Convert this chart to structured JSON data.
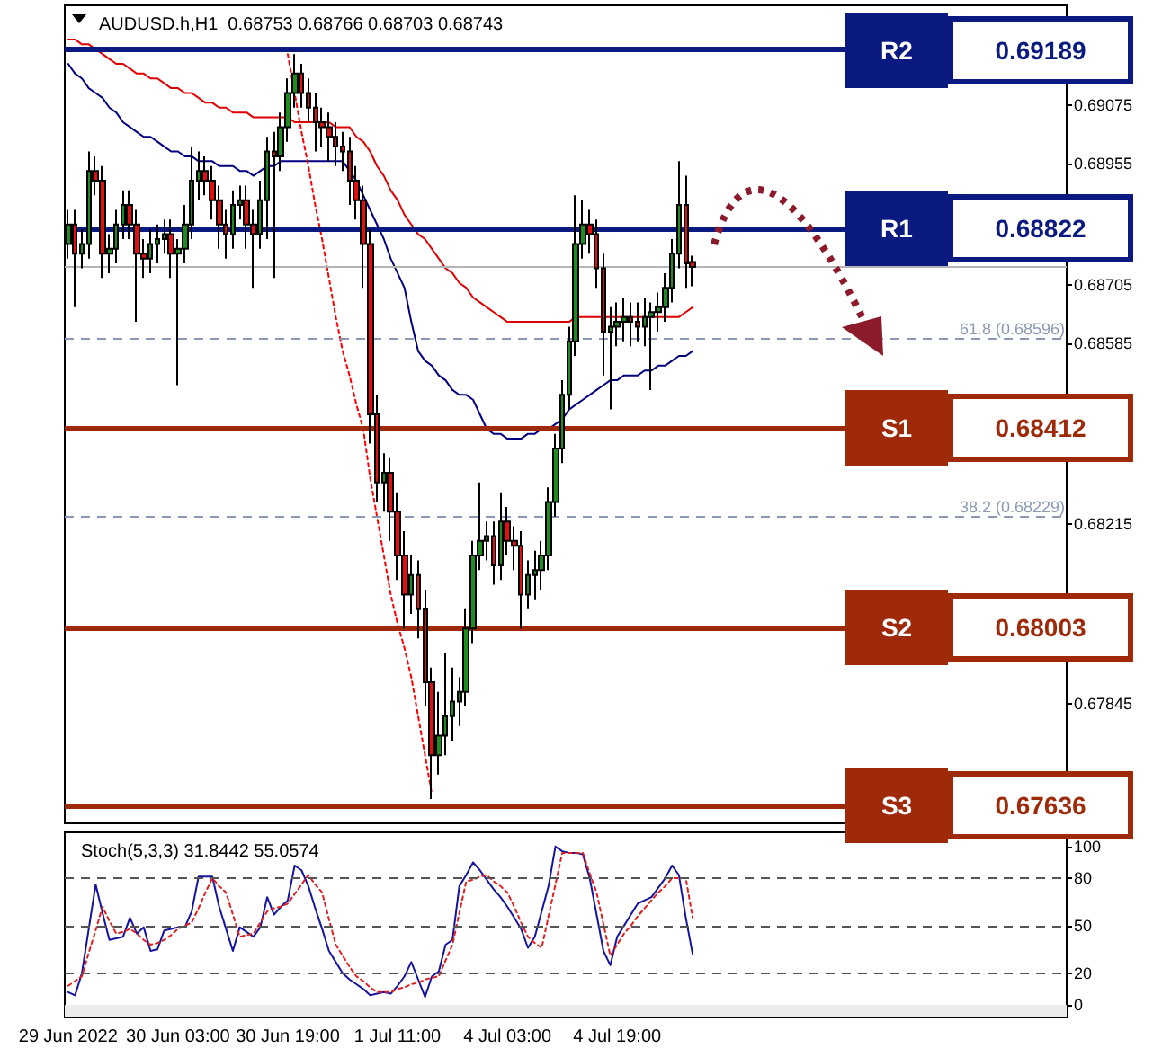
{
  "chart_data": [
    {
      "type": "candlestick",
      "title": "AUDUSD.h,H1  0.68753 0.68766 0.68703 0.68743",
      "categories": [
        null,
        null,
        null,
        null,
        null,
        null,
        null,
        null,
        null,
        null,
        null,
        null,
        null,
        null,
        null,
        null,
        null,
        null,
        null,
        null,
        null,
        null,
        null,
        null,
        null,
        null,
        null,
        null,
        null,
        null,
        null,
        null,
        null,
        null,
        null,
        null,
        null,
        null,
        null,
        null,
        null,
        null,
        null,
        null,
        null,
        null,
        null,
        null,
        null,
        null,
        null,
        null,
        null,
        null,
        null,
        null,
        null,
        null,
        null,
        null,
        null,
        null,
        null,
        null,
        null,
        null,
        null,
        null,
        null,
        null,
        null,
        null,
        null,
        null,
        null,
        null,
        null,
        null,
        null,
        null,
        null,
        null,
        null,
        null,
        null,
        null,
        null,
        null,
        null,
        null,
        null,
        null,
        null,
        null,
        null,
        null,
        null,
        null,
        null,
        null,
        null,
        null,
        null,
        null,
        null,
        null,
        null,
        null,
        null,
        null,
        null,
        null,
        null,
        null,
        null,
        null,
        null,
        null,
        null,
        null,
        null,
        null,
        null,
        null,
        null,
        null,
        null,
        null,
        null,
        null,
        null,
        null,
        null,
        null,
        null,
        null,
        null,
        null,
        null,
        null,
        null,
        null,
        null,
        null,
        null,
        null
      ],
      "ohlc": [
        [
          0.6879,
          0.6886,
          0.6876,
          0.6883
        ],
        [
          0.6883,
          0.6886,
          0.6866,
          0.6877
        ],
        [
          0.6877,
          0.6882,
          0.6874,
          0.6879
        ],
        [
          0.6879,
          0.6898,
          0.6876,
          0.6894
        ],
        [
          0.6894,
          0.6897,
          0.6889,
          0.6892
        ],
        [
          0.6892,
          0.6895,
          0.6872,
          0.6877
        ],
        [
          0.6877,
          0.6881,
          0.6873,
          0.6878
        ],
        [
          0.6878,
          0.6886,
          0.6875,
          0.6883
        ],
        [
          0.6883,
          0.689,
          0.688,
          0.6887
        ],
        [
          0.6887,
          0.689,
          0.688,
          0.6883
        ],
        [
          0.6883,
          0.6886,
          0.6863,
          0.6877
        ],
        [
          0.6877,
          0.688,
          0.6872,
          0.6876
        ],
        [
          0.6876,
          0.6882,
          0.6873,
          0.6879
        ],
        [
          0.6879,
          0.6883,
          0.6875,
          0.688
        ],
        [
          0.688,
          0.6884,
          0.6877,
          0.6881
        ],
        [
          0.6881,
          0.6884,
          0.6872,
          0.6877
        ],
        [
          0.6877,
          0.688,
          0.685,
          0.6878
        ],
        [
          0.6878,
          0.6887,
          0.6875,
          0.6883
        ],
        [
          0.6883,
          0.6899,
          0.688,
          0.6892
        ],
        [
          0.6892,
          0.6898,
          0.6888,
          0.6894
        ],
        [
          0.6894,
          0.6897,
          0.6889,
          0.6892
        ],
        [
          0.6892,
          0.6895,
          0.6884,
          0.6888
        ],
        [
          0.6888,
          0.6891,
          0.6878,
          0.6883
        ],
        [
          0.6883,
          0.6886,
          0.6876,
          0.6881
        ],
        [
          0.6881,
          0.689,
          0.6878,
          0.6887
        ],
        [
          0.6887,
          0.6891,
          0.6884,
          0.6888
        ],
        [
          0.6888,
          0.6891,
          0.6878,
          0.6883
        ],
        [
          0.6883,
          0.6886,
          0.687,
          0.6881
        ],
        [
          0.6881,
          0.6892,
          0.6878,
          0.6888
        ],
        [
          0.6888,
          0.6901,
          0.688,
          0.6898
        ],
        [
          0.6898,
          0.6902,
          0.6872,
          0.6897
        ],
        [
          0.6897,
          0.6906,
          0.6894,
          0.6903
        ],
        [
          0.6903,
          0.6913,
          0.69,
          0.691
        ],
        [
          0.691,
          0.6918,
          0.6907,
          0.6914
        ],
        [
          0.6914,
          0.6916,
          0.6907,
          0.691
        ],
        [
          0.691,
          0.6913,
          0.6904,
          0.6907
        ],
        [
          0.6907,
          0.691,
          0.6898,
          0.6904
        ],
        [
          0.6904,
          0.6907,
          0.6899,
          0.6903
        ],
        [
          0.6903,
          0.6906,
          0.6896,
          0.6901
        ],
        [
          0.6901,
          0.6904,
          0.6895,
          0.6899
        ],
        [
          0.6899,
          0.6902,
          0.6894,
          0.6898
        ],
        [
          0.6898,
          0.6901,
          0.6887,
          0.6892
        ],
        [
          0.6892,
          0.6895,
          0.6884,
          0.6888
        ],
        [
          0.6888,
          0.6891,
          0.687,
          0.6879
        ],
        [
          0.6879,
          0.6882,
          0.6838,
          0.6844
        ],
        [
          0.6844,
          0.6848,
          0.6826,
          0.683
        ],
        [
          0.683,
          0.6836,
          0.6824,
          0.6832
        ],
        [
          0.6832,
          0.6835,
          0.6818,
          0.6824
        ],
        [
          0.6824,
          0.6828,
          0.681,
          0.6815
        ],
        [
          0.6815,
          0.682,
          0.68,
          0.6807
        ],
        [
          0.6807,
          0.6815,
          0.6803,
          0.6811
        ],
        [
          0.6811,
          0.6814,
          0.6798,
          0.6804
        ],
        [
          0.6804,
          0.6808,
          0.6784,
          0.6789
        ],
        [
          0.6789,
          0.6792,
          0.6765,
          0.6774
        ],
        [
          0.6774,
          0.6787,
          0.677,
          0.6778
        ],
        [
          0.6778,
          0.6795,
          0.6774,
          0.6782
        ],
        [
          0.6782,
          0.6792,
          0.6777,
          0.6785
        ],
        [
          0.6785,
          0.679,
          0.678,
          0.6787
        ],
        [
          0.6787,
          0.6804,
          0.6784,
          0.68
        ],
        [
          0.68,
          0.6818,
          0.6797,
          0.6815
        ],
        [
          0.6815,
          0.683,
          0.6812,
          0.6818
        ],
        [
          0.6818,
          0.6822,
          0.6814,
          0.6819
        ],
        [
          0.6819,
          0.6822,
          0.6809,
          0.6813
        ],
        [
          0.6813,
          0.6828,
          0.681,
          0.6822
        ],
        [
          0.6822,
          0.6825,
          0.6815,
          0.6818
        ],
        [
          0.6818,
          0.6821,
          0.6812,
          0.6817
        ],
        [
          0.6817,
          0.682,
          0.68,
          0.6807
        ],
        [
          0.6807,
          0.6814,
          0.6804,
          0.6811
        ],
        [
          0.6811,
          0.6816,
          0.6806,
          0.6812
        ],
        [
          0.6812,
          0.6818,
          0.6808,
          0.6815
        ],
        [
          0.6815,
          0.6829,
          0.6812,
          0.6826
        ],
        [
          0.6826,
          0.684,
          0.6823,
          0.6837
        ],
        [
          0.6837,
          0.6851,
          0.6834,
          0.6848
        ],
        [
          0.6848,
          0.6862,
          0.6845,
          0.6859
        ],
        [
          0.6859,
          0.6889,
          0.6856,
          0.6879
        ],
        [
          0.6879,
          0.6888,
          0.6876,
          0.6883
        ],
        [
          0.6883,
          0.6886,
          0.6877,
          0.6881
        ],
        [
          0.6881,
          0.6884,
          0.687,
          0.6874
        ],
        [
          0.6874,
          0.6877,
          0.6852,
          0.6861
        ],
        [
          0.6861,
          0.6866,
          0.6845,
          0.6862
        ],
        [
          0.6862,
          0.6867,
          0.6858,
          0.6863
        ],
        [
          0.6863,
          0.6868,
          0.6859,
          0.6864
        ],
        [
          0.6864,
          0.6867,
          0.6858,
          0.6863
        ],
        [
          0.6863,
          0.6867,
          0.6859,
          0.6862
        ],
        [
          0.6862,
          0.6868,
          0.6858,
          0.6864
        ],
        [
          0.6864,
          0.6867,
          0.6849,
          0.6865
        ],
        [
          0.6865,
          0.6869,
          0.6861,
          0.6866
        ],
        [
          0.6866,
          0.6873,
          0.6863,
          0.687
        ],
        [
          0.687,
          0.688,
          0.6867,
          0.6877
        ],
        [
          0.6877,
          0.6896,
          0.6874,
          0.6887
        ],
        [
          0.6887,
          0.6893,
          0.687,
          0.6875
        ],
        [
          0.68753,
          0.68766,
          0.68703,
          0.68743
        ],
        null,
        null,
        null,
        null,
        null,
        null,
        null,
        null,
        null,
        null,
        null,
        null,
        null,
        null,
        null,
        null,
        null,
        null,
        null,
        null,
        null,
        null,
        null,
        null,
        null,
        null,
        null,
        null,
        null,
        null,
        null,
        null,
        null,
        null,
        null,
        null,
        null,
        null,
        null,
        null,
        null,
        null,
        null,
        null,
        null,
        null,
        null,
        null,
        null,
        null,
        null,
        null,
        null,
        null
      ],
      "series": [
        {
          "type": "line",
          "color": "#e00000",
          "values": [
            0.6921,
            0.6921,
            0.692,
            0.692,
            0.6919,
            0.6918,
            0.6917,
            0.6916,
            0.6916,
            0.6915,
            0.6914,
            0.6914,
            0.6913,
            0.6913,
            0.6912,
            0.6911,
            0.6911,
            0.691,
            0.691,
            0.6909,
            0.6908,
            0.6908,
            0.6907,
            0.6907,
            0.6906,
            0.6906,
            0.6906,
            0.6905,
            0.6905,
            0.6905,
            0.6905,
            0.6905,
            0.6905,
            0.6904,
            0.6904,
            0.6904,
            0.6904,
            0.6904,
            0.6904,
            0.6903,
            0.6903,
            0.6903,
            0.6901,
            0.69,
            0.6898,
            0.6895,
            0.6893,
            0.689,
            0.6888,
            0.6885,
            0.6883,
            0.6881,
            0.688,
            0.6878,
            0.6876,
            0.6874,
            0.6873,
            0.6871,
            0.687,
            0.6868,
            0.6867,
            0.6866,
            0.6865,
            0.6864,
            0.6863,
            0.6863,
            0.6863,
            0.6863,
            0.6863,
            0.6863,
            0.6863,
            0.6863,
            0.6863,
            0.6863,
            0.6864,
            0.6864,
            0.6864,
            0.6864,
            0.6864,
            0.6864,
            0.6864,
            0.6864,
            0.6864,
            0.6864,
            0.6864,
            0.6864,
            0.6864,
            0.6864,
            0.6864,
            0.6864,
            0.6865,
            0.6866,
            null,
            null,
            null,
            null,
            null,
            null,
            null,
            null,
            null,
            null,
            null,
            null,
            null,
            null,
            null,
            null,
            null,
            null,
            null,
            null,
            null,
            null,
            null,
            null,
            null,
            null,
            null,
            null,
            null,
            null,
            null,
            null,
            null,
            null,
            null,
            null,
            null,
            null,
            null,
            null,
            null,
            null,
            null,
            null,
            null,
            null,
            null,
            null,
            null,
            null,
            null,
            null,
            null,
            null
          ]
        },
        {
          "type": "line",
          "color": "#000080",
          "values": [
            0.6916,
            0.6914,
            0.6913,
            0.6911,
            0.691,
            0.6909,
            0.6907,
            0.6906,
            0.6904,
            0.6903,
            0.6902,
            0.6901,
            0.6901,
            0.69,
            0.6899,
            0.6898,
            0.6898,
            0.6897,
            0.6897,
            0.6896,
            0.6896,
            0.6896,
            0.6895,
            0.6895,
            0.6895,
            0.6894,
            0.6894,
            0.6893,
            0.6894,
            0.6895,
            0.6895,
            0.6896,
            0.6896,
            0.6896,
            0.6896,
            0.6896,
            0.6896,
            0.6896,
            0.6896,
            0.6896,
            0.6896,
            0.6894,
            0.6892,
            0.6889,
            0.6886,
            0.6883,
            0.688,
            0.6876,
            0.6873,
            0.687,
            0.6863,
            0.6857,
            0.6855,
            0.6854,
            0.6852,
            0.6851,
            0.6849,
            0.6848,
            0.6848,
            0.6847,
            0.6844,
            0.6841,
            0.684,
            0.684,
            0.6839,
            0.6839,
            0.6839,
            0.684,
            0.684,
            0.6841,
            0.6841,
            0.6842,
            0.6843,
            0.6845,
            0.6846,
            0.6847,
            0.6848,
            0.6849,
            0.685,
            0.6851,
            0.6851,
            0.6852,
            0.6852,
            0.6852,
            0.6853,
            0.6853,
            0.6854,
            0.6854,
            0.6855,
            0.6856,
            0.6856,
            0.6857,
            null,
            null,
            null,
            null,
            null,
            null,
            null,
            null,
            null,
            null,
            null,
            null,
            null,
            null,
            null,
            null,
            null,
            null,
            null,
            null,
            null,
            null,
            null,
            null,
            null,
            null,
            null,
            null,
            null,
            null,
            null,
            null,
            null,
            null,
            null,
            null,
            null,
            null,
            null,
            null,
            null,
            null,
            null,
            null,
            null,
            null,
            null,
            null,
            null,
            null,
            null,
            null,
            null,
            null
          ]
        },
        {
          "type": "line",
          "color": "#ff0000",
          "line_style": "dotted",
          "values": [
            null,
            null,
            null,
            null,
            null,
            null,
            null,
            null,
            null,
            null,
            null,
            null,
            null,
            null,
            null,
            null,
            null,
            null,
            null,
            null,
            null,
            null,
            null,
            null,
            null,
            null,
            null,
            null,
            null,
            null,
            null,
            null,
            0.6918,
            0.691,
            0.6902,
            0.6895,
            0.6887,
            0.688,
            0.6872,
            0.6864,
            0.6857,
            0.6852,
            0.6846,
            0.6841,
            0.6831,
            0.6823,
            0.6815,
            0.6807,
            0.6801,
            0.6796,
            0.679,
            0.6782,
            0.6774,
            0.6766,
            null,
            null,
            null,
            null,
            null,
            null,
            null,
            null,
            null,
            null,
            null,
            null,
            null,
            null,
            null,
            null,
            null,
            null,
            null,
            null,
            null,
            null,
            null,
            null,
            null,
            null,
            null,
            null,
            null,
            null,
            null,
            null,
            null,
            null,
            null,
            null,
            null,
            null,
            null,
            null,
            null,
            null,
            null,
            null,
            null,
            null,
            null,
            null,
            null,
            null,
            null,
            null,
            null,
            null,
            null,
            null,
            null,
            null,
            null,
            null,
            null,
            null,
            null,
            null,
            null,
            null,
            null,
            null,
            null,
            null,
            null,
            null,
            null,
            null,
            null,
            null,
            null,
            null,
            null,
            null,
            null,
            null,
            null,
            null,
            null,
            null,
            null,
            null,
            null,
            null,
            null,
            null
          ]
        }
      ],
      "ylim": [
        0.676,
        0.6928
      ],
      "yticks": [
        0.69075,
        0.68955,
        0.68705,
        0.68585,
        0.68215,
        0.67845
      ],
      "tick_labels": "y",
      "grid": false,
      "marker": "none",
      "ref_lines": [
        {
          "axis": "y",
          "value": 0.68743,
          "color": "#b4b4b4"
        },
        {
          "axis": "y",
          "value": 0.68596,
          "label": "61.8 (0.68596)",
          "color": "#8a9ab4",
          "line_style": "dashed"
        },
        {
          "axis": "y",
          "value": 0.68229,
          "label": "38.2 (0.68229)",
          "color": "#8a9ab4",
          "line_style": "dashed"
        },
        {
          "axis": "y",
          "value": 0.69189,
          "label": "R2",
          "color": "#0b1a80",
          "line_style": "solid"
        },
        {
          "axis": "y",
          "value": 0.68822,
          "label": "R1",
          "color": "#0b1a80",
          "line_style": "solid"
        },
        {
          "axis": "y",
          "value": 0.68412,
          "label": "S1",
          "color": "#9e2a0a",
          "line_style": "solid"
        },
        {
          "axis": "y",
          "value": 0.68003,
          "label": "S2",
          "color": "#9e2a0a",
          "line_style": "solid"
        },
        {
          "axis": "y",
          "value": 0.67636,
          "label": "S3",
          "color": "#9e2a0a",
          "line_style": "solid"
        }
      ],
      "annotations": [
        "0.69189",
        "0.68822",
        "0.68412",
        "0.68003",
        "0.67636"
      ]
    },
    {
      "type": "line",
      "title": "Stoch(5,3,3) 31.8442 55.0574",
      "categories": [
        "29 Jun 2022",
        null,
        null,
        null,
        null,
        null,
        null,
        null,
        null,
        null,
        null,
        null,
        null,
        null,
        null,
        null,
        "30 Jun 03:00",
        null,
        null,
        null,
        null,
        null,
        null,
        null,
        null,
        null,
        null,
        null,
        null,
        null,
        null,
        null,
        "30 Jun 19:00",
        null,
        null,
        null,
        null,
        null,
        null,
        null,
        null,
        null,
        null,
        null,
        null,
        null,
        null,
        null,
        "1 Jul 11:00",
        null,
        null,
        null,
        null,
        null,
        null,
        null,
        null,
        null,
        null,
        null,
        null,
        null,
        null,
        null,
        "4 Jul 03:00",
        null,
        null,
        null,
        null,
        null,
        null,
        null,
        null,
        null,
        null,
        null,
        null,
        null,
        null,
        null,
        "4 Jul 19:00",
        null,
        null,
        null,
        null,
        null,
        null,
        null,
        null,
        null,
        null,
        null,
        null,
        null,
        null,
        null,
        null,
        null,
        null,
        null,
        null,
        null,
        null,
        null,
        null,
        null,
        null,
        null,
        null,
        null,
        null,
        null,
        null,
        null,
        null,
        null,
        null,
        null,
        null,
        null,
        null,
        null,
        null,
        null,
        null,
        null,
        null,
        null,
        null,
        null,
        null,
        null,
        null,
        null,
        null,
        null,
        null,
        null,
        null,
        null,
        null,
        null,
        null,
        null,
        null,
        null
      ],
      "series": [
        {
          "color": "#1414a0",
          "values": [
            8,
            6,
            20,
            48,
            76,
            58,
            41,
            42,
            43,
            55,
            45,
            49,
            34,
            35,
            47,
            48,
            49,
            49,
            59,
            81,
            81,
            81,
            62,
            48,
            34,
            49,
            46,
            43,
            49,
            68,
            57,
            62,
            66,
            88,
            85,
            75,
            61,
            48,
            34,
            27,
            20,
            16,
            13,
            10,
            6,
            7,
            8,
            7,
            12,
            18,
            27,
            16,
            5,
            18,
            21,
            38,
            41,
            75,
            82,
            90,
            85,
            79,
            73,
            68,
            62,
            55,
            48,
            36,
            43,
            59,
            75,
            100,
            97,
            96,
            96,
            95,
            80,
            57,
            34,
            25,
            43,
            50,
            57,
            64,
            66,
            68,
            74,
            80,
            88,
            82,
            55,
            32,
            null,
            null,
            null,
            null,
            null,
            null,
            null,
            null,
            null,
            null,
            null,
            null,
            null,
            null,
            null,
            null,
            null,
            null,
            null,
            null,
            null,
            null,
            null,
            null,
            null,
            null,
            null,
            null,
            null,
            null,
            null,
            null,
            null,
            null,
            null,
            null,
            null,
            null,
            null,
            null,
            null,
            null,
            null,
            null,
            null,
            null,
            null,
            null,
            null,
            null,
            null,
            null,
            null,
            null
          ]
        },
        {
          "color": "#e02020",
          "line_style": "dotted",
          "values": [
            12,
            15,
            18,
            33,
            47,
            62,
            53,
            45,
            46,
            48,
            45,
            41,
            38,
            39,
            41,
            44,
            48,
            50,
            52,
            61,
            71,
            80,
            75,
            71,
            57,
            43,
            44,
            45,
            52,
            59,
            61,
            62,
            64,
            70,
            76,
            82,
            76,
            71,
            54,
            38,
            31,
            24,
            18,
            15,
            11,
            8,
            8,
            8,
            10,
            11,
            13,
            14,
            16,
            17,
            18,
            28,
            38,
            58,
            78,
            79,
            81,
            82,
            78,
            75,
            71,
            62,
            52,
            43,
            39,
            36,
            56,
            76,
            96,
            96,
            96,
            96,
            83,
            71,
            51,
            31,
            38,
            45,
            50,
            56,
            61,
            66,
            71,
            75,
            80,
            80,
            80,
            55,
            null,
            null,
            null,
            null,
            null,
            null,
            null,
            null,
            null,
            null,
            null,
            null,
            null,
            null,
            null,
            null,
            null,
            null,
            null,
            null,
            null,
            null,
            null,
            null,
            null,
            null,
            null,
            null,
            null,
            null,
            null,
            null,
            null,
            null,
            null,
            null,
            null,
            null,
            null,
            null,
            null,
            null,
            null,
            null,
            null,
            null,
            null,
            null,
            null,
            null,
            null,
            null,
            null,
            null
          ]
        }
      ],
      "ylim": [
        -8,
        109
      ],
      "yticks": [
        0,
        20,
        50,
        80,
        100
      ],
      "grid": false,
      "marker": "none",
      "ref_lines": [
        {
          "axis": "y",
          "value": 20,
          "color": "#555555",
          "line_style": "dashed"
        },
        {
          "axis": "y",
          "value": 50,
          "color": "#555555",
          "line_style": "dashed"
        },
        {
          "axis": "y",
          "value": 80,
          "color": "#555555",
          "line_style": "dashed"
        }
      ],
      "bands": [
        {
          "axis": "y",
          "from": -8,
          "to": 0,
          "color": "#ececec"
        }
      ]
    }
  ]
}
